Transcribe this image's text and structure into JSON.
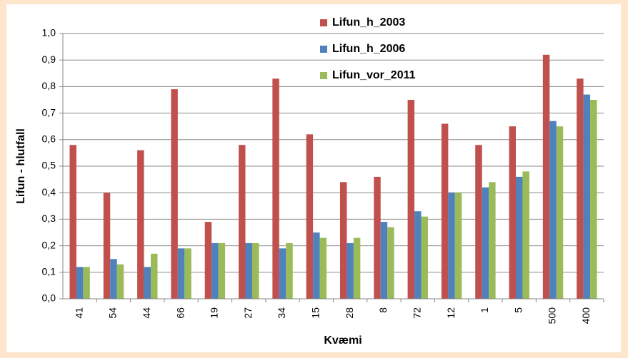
{
  "chart_data": {
    "type": "bar",
    "x_label": "Kvæmi",
    "y_label": "Lifun - hlutfall",
    "categories": [
      "41",
      "54",
      "44",
      "66",
      "19",
      "27",
      "34",
      "15",
      "28",
      "8",
      "72",
      "12",
      "1",
      "5",
      "500",
      "400"
    ],
    "series": [
      {
        "name": "Lifun_h_2003",
        "color": "#c0504d",
        "values": [
          0.58,
          0.4,
          0.56,
          0.79,
          0.29,
          0.58,
          0.83,
          0.62,
          0.44,
          0.46,
          0.75,
          0.66,
          0.58,
          0.65,
          0.92,
          0.83
        ]
      },
      {
        "name": "Lifun_h_2006",
        "color": "#4f81bd",
        "values": [
          0.12,
          0.15,
          0.12,
          0.19,
          0.21,
          0.21,
          0.19,
          0.25,
          0.21,
          0.29,
          0.33,
          0.4,
          0.42,
          0.46,
          0.67,
          0.77
        ]
      },
      {
        "name": "Lifun_vor_2011",
        "color": "#9bbb59",
        "values": [
          0.12,
          0.13,
          0.17,
          0.19,
          0.21,
          0.21,
          0.21,
          0.23,
          0.23,
          0.27,
          0.31,
          0.4,
          0.44,
          0.48,
          0.65,
          0.75
        ]
      }
    ],
    "ylim": [
      0,
      1
    ],
    "yticks": [
      {
        "value": 0,
        "label": "0,0"
      },
      {
        "value": 0.1,
        "label": "0,1"
      },
      {
        "value": 0.2,
        "label": "0,2"
      },
      {
        "value": 0.3,
        "label": "0,3"
      },
      {
        "value": 0.4,
        "label": "0,4"
      },
      {
        "value": 0.5,
        "label": "0,5"
      },
      {
        "value": 0.6,
        "label": "0,6"
      },
      {
        "value": 0.7,
        "label": "0,7"
      },
      {
        "value": 0.8,
        "label": "0,8"
      },
      {
        "value": 0.9,
        "label": "0,9"
      },
      {
        "value": 1,
        "label": "1,0"
      }
    ],
    "grid": true
  }
}
